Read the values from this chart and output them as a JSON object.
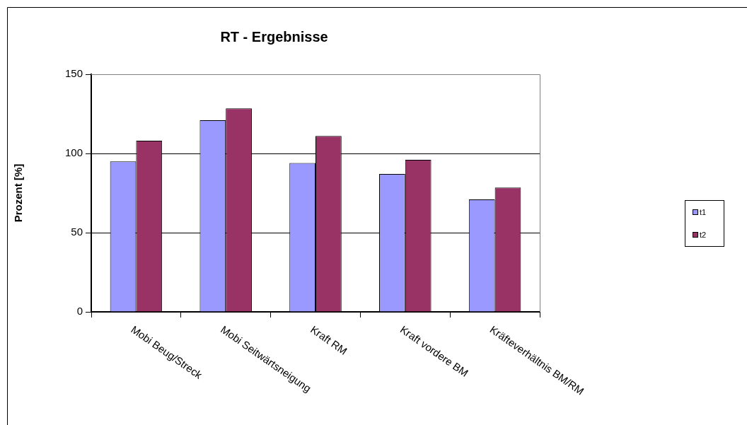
{
  "chart_data": {
    "type": "bar",
    "title": "RT - Ergebnisse",
    "ylabel": "Prozent [%]",
    "categories": [
      "Mobi Beug/Streck",
      "Mobi Seitwärtsneigung",
      "Kraft RM",
      "Kraft vordere BM",
      "Kräfteverhältnis BM/RM"
    ],
    "series": [
      {
        "name": "t1",
        "color": "#9999ff",
        "values": [
          95,
          121,
          94,
          87,
          71
        ]
      },
      {
        "name": "t2",
        "color": "#993366",
        "values": [
          108,
          128.5,
          111,
          96,
          78.5
        ]
      }
    ],
    "ylim": [
      0,
      150
    ],
    "yticks": [
      0,
      50,
      100,
      150
    ],
    "grid": "y",
    "legend": "right"
  }
}
